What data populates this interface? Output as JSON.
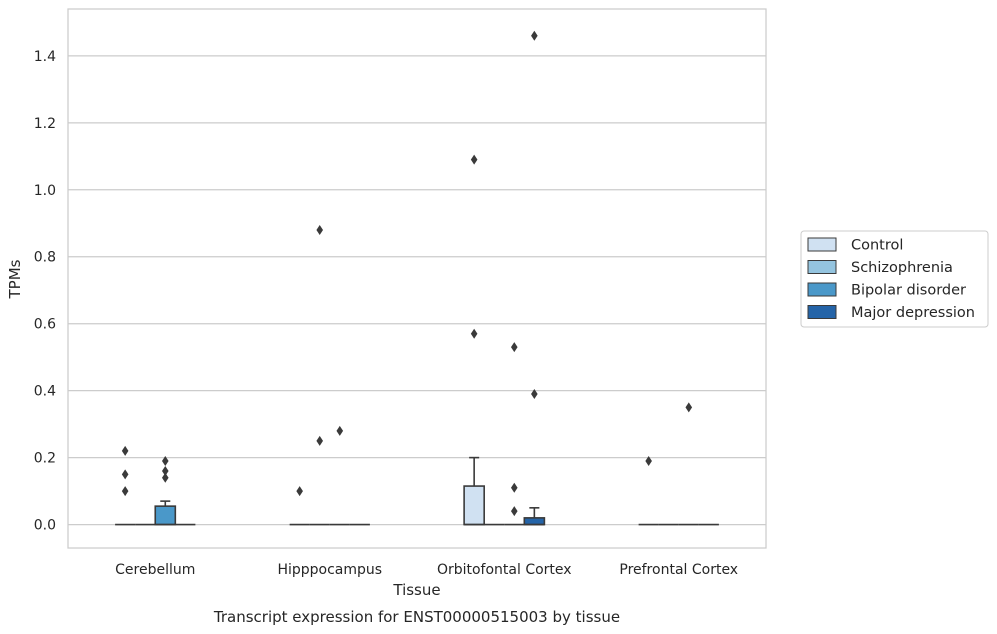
{
  "chart_data": {
    "type": "box",
    "title": "Transcript expression for ENST00000515003 by tissue",
    "xlabel": "Tissue",
    "ylabel": "TPMs",
    "categories": [
      "Cerebellum",
      "Hipppocampus",
      "Orbitofontal Cortex",
      "Prefrontal Cortex"
    ],
    "ylim": [
      -0.07,
      1.54
    ],
    "yticks": [
      "0.0",
      "0.2",
      "0.4",
      "0.6",
      "0.8",
      "1.0",
      "1.2",
      "1.4"
    ],
    "grid": "horizontal",
    "legend_position": "right",
    "series": [
      {
        "name": "Control",
        "color": "#d0e1f2",
        "boxes": [
          {
            "q1": 0,
            "median": 0,
            "q3": 0,
            "whisker_low": 0,
            "whisker_high": 0,
            "outliers": [
              0.22,
              0.15,
              0.1
            ]
          },
          {
            "q1": 0,
            "median": 0,
            "q3": 0,
            "whisker_low": 0,
            "whisker_high": 0,
            "outliers": [
              0.1
            ]
          },
          {
            "q1": 0,
            "median": 0,
            "q3": 0.115,
            "whisker_low": 0,
            "whisker_high": 0.2,
            "outliers": [
              1.09,
              0.57
            ]
          },
          {
            "q1": 0,
            "median": 0,
            "q3": 0,
            "whisker_low": 0,
            "whisker_high": 0,
            "outliers": [
              0.19
            ]
          }
        ]
      },
      {
        "name": "Schizophrenia",
        "color": "#94c4df",
        "boxes": [
          {
            "q1": 0,
            "median": 0,
            "q3": 0,
            "whisker_low": 0,
            "whisker_high": 0,
            "outliers": []
          },
          {
            "q1": 0,
            "median": 0,
            "q3": 0,
            "whisker_low": 0,
            "whisker_high": 0,
            "outliers": [
              0.88,
              0.25
            ]
          },
          {
            "q1": 0,
            "median": 0,
            "q3": 0,
            "whisker_low": 0,
            "whisker_high": 0,
            "outliers": []
          },
          {
            "q1": 0,
            "median": 0,
            "q3": 0,
            "whisker_low": 0,
            "whisker_high": 0,
            "outliers": []
          }
        ]
      },
      {
        "name": "Bipolar disorder",
        "color": "#4a98c9",
        "boxes": [
          {
            "q1": 0,
            "median": 0,
            "q3": 0.055,
            "whisker_low": 0,
            "whisker_high": 0.07,
            "outliers": [
              0.19,
              0.16,
              0.14
            ]
          },
          {
            "q1": 0,
            "median": 0,
            "q3": 0,
            "whisker_low": 0,
            "whisker_high": 0,
            "outliers": [
              0.28
            ]
          },
          {
            "q1": 0,
            "median": 0,
            "q3": 0,
            "whisker_low": 0,
            "whisker_high": 0,
            "outliers": [
              0.53,
              0.11,
              0.04
            ]
          },
          {
            "q1": 0,
            "median": 0,
            "q3": 0,
            "whisker_low": 0,
            "whisker_high": 0,
            "outliers": [
              0.35
            ]
          }
        ]
      },
      {
        "name": "Major depression",
        "color": "#2464a8",
        "boxes": [
          {
            "q1": 0,
            "median": 0,
            "q3": 0,
            "whisker_low": 0,
            "whisker_high": 0,
            "outliers": []
          },
          {
            "q1": 0,
            "median": 0,
            "q3": 0,
            "whisker_low": 0,
            "whisker_high": 0,
            "outliers": []
          },
          {
            "q1": 0,
            "median": 0,
            "q3": 0.02,
            "whisker_low": 0,
            "whisker_high": 0.05,
            "outliers": [
              1.46,
              0.39
            ]
          },
          {
            "q1": 0,
            "median": 0,
            "q3": 0,
            "whisker_low": 0,
            "whisker_high": 0,
            "outliers": []
          }
        ]
      }
    ]
  }
}
